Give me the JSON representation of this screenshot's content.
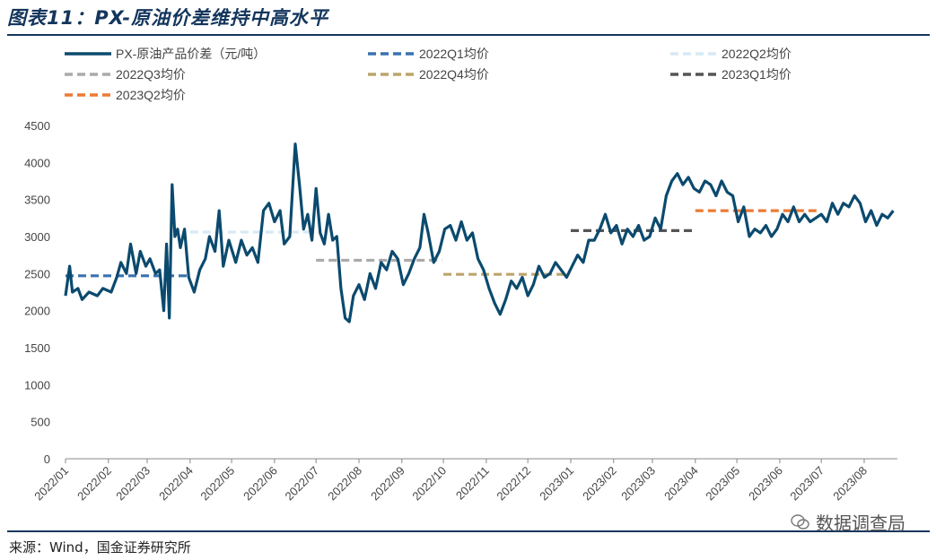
{
  "header": {
    "title": "图表11：PX-原油价差维持中高水平"
  },
  "footer": {
    "source": "来源：Wind，国金证券研究所",
    "watermark": "数据调查局"
  },
  "chart_data": {
    "type": "line",
    "ylim": [
      0,
      4500
    ],
    "yticks": [
      0,
      500,
      1000,
      1500,
      2000,
      2500,
      3000,
      3500,
      4000,
      4500
    ],
    "xticks": [
      "2022/01",
      "2022/02",
      "2022/03",
      "2022/04",
      "2022/05",
      "2022/06",
      "2022/07",
      "2022/08",
      "2022/09",
      "2022/10",
      "2022/11",
      "2022/12",
      "2023/01",
      "2023/02",
      "2023/03",
      "2023/04",
      "2023/05",
      "2023/06",
      "2023/07",
      "2023/08"
    ],
    "series": [
      {
        "name": "PX-原油产品价差（元/吨）",
        "color": "#0b4a6e",
        "style": "solid",
        "points": [
          [
            "2022-01-01",
            2200
          ],
          [
            "2022-01-04",
            2600
          ],
          [
            "2022-01-06",
            2250
          ],
          [
            "2022-01-10",
            2300
          ],
          [
            "2022-01-13",
            2150
          ],
          [
            "2022-01-18",
            2250
          ],
          [
            "2022-01-24",
            2200
          ],
          [
            "2022-01-28",
            2300
          ],
          [
            "2022-02-03",
            2250
          ],
          [
            "2022-02-07",
            2450
          ],
          [
            "2022-02-10",
            2650
          ],
          [
            "2022-02-14",
            2500
          ],
          [
            "2022-02-17",
            2900
          ],
          [
            "2022-02-21",
            2500
          ],
          [
            "2022-02-24",
            2800
          ],
          [
            "2022-02-28",
            2600
          ],
          [
            "2022-03-03",
            2700
          ],
          [
            "2022-03-07",
            2500
          ],
          [
            "2022-03-10",
            2550
          ],
          [
            "2022-03-13",
            2000
          ],
          [
            "2022-03-15",
            2900
          ],
          [
            "2022-03-17",
            1900
          ],
          [
            "2022-03-19",
            3700
          ],
          [
            "2022-03-21",
            3000
          ],
          [
            "2022-03-23",
            3100
          ],
          [
            "2022-03-25",
            2850
          ],
          [
            "2022-03-28",
            3100
          ],
          [
            "2022-03-31",
            2450
          ],
          [
            "2022-04-04",
            2250
          ],
          [
            "2022-04-08",
            2550
          ],
          [
            "2022-04-12",
            2700
          ],
          [
            "2022-04-15",
            3000
          ],
          [
            "2022-04-19",
            2800
          ],
          [
            "2022-04-22",
            3350
          ],
          [
            "2022-04-25",
            2600
          ],
          [
            "2022-04-29",
            2950
          ],
          [
            "2022-05-04",
            2650
          ],
          [
            "2022-05-08",
            2950
          ],
          [
            "2022-05-12",
            2750
          ],
          [
            "2022-05-16",
            2850
          ],
          [
            "2022-05-20",
            2650
          ],
          [
            "2022-05-24",
            3350
          ],
          [
            "2022-05-28",
            3450
          ],
          [
            "2022-06-01",
            3200
          ],
          [
            "2022-06-05",
            3350
          ],
          [
            "2022-06-08",
            2900
          ],
          [
            "2022-06-12",
            3000
          ],
          [
            "2022-06-16",
            4250
          ],
          [
            "2022-06-19",
            3700
          ],
          [
            "2022-06-22",
            3100
          ],
          [
            "2022-06-25",
            3300
          ],
          [
            "2022-06-28",
            2950
          ],
          [
            "2022-07-01",
            3650
          ],
          [
            "2022-07-04",
            3050
          ],
          [
            "2022-07-07",
            2900
          ],
          [
            "2022-07-10",
            3300
          ],
          [
            "2022-07-13",
            2950
          ],
          [
            "2022-07-16",
            3000
          ],
          [
            "2022-07-19",
            2300
          ],
          [
            "2022-07-22",
            1900
          ],
          [
            "2022-07-25",
            1850
          ],
          [
            "2022-07-28",
            2200
          ],
          [
            "2022-08-01",
            2350
          ],
          [
            "2022-08-05",
            2150
          ],
          [
            "2022-08-09",
            2500
          ],
          [
            "2022-08-13",
            2300
          ],
          [
            "2022-08-17",
            2650
          ],
          [
            "2022-08-21",
            2550
          ],
          [
            "2022-08-25",
            2800
          ],
          [
            "2022-08-29",
            2700
          ],
          [
            "2022-09-02",
            2350
          ],
          [
            "2022-09-06",
            2500
          ],
          [
            "2022-09-10",
            2700
          ],
          [
            "2022-09-14",
            2850
          ],
          [
            "2022-09-17",
            3300
          ],
          [
            "2022-09-20",
            3050
          ],
          [
            "2022-09-24",
            2650
          ],
          [
            "2022-09-28",
            2800
          ],
          [
            "2022-10-02",
            3100
          ],
          [
            "2022-10-06",
            3150
          ],
          [
            "2022-10-10",
            2950
          ],
          [
            "2022-10-14",
            3200
          ],
          [
            "2022-10-18",
            2950
          ],
          [
            "2022-10-22",
            3050
          ],
          [
            "2022-10-26",
            2700
          ],
          [
            "2022-10-30",
            2550
          ],
          [
            "2022-11-03",
            2300
          ],
          [
            "2022-11-07",
            2100
          ],
          [
            "2022-11-11",
            1950
          ],
          [
            "2022-11-15",
            2150
          ],
          [
            "2022-11-19",
            2400
          ],
          [
            "2022-11-23",
            2300
          ],
          [
            "2022-11-27",
            2450
          ],
          [
            "2022-12-01",
            2200
          ],
          [
            "2022-12-05",
            2350
          ],
          [
            "2022-12-09",
            2600
          ],
          [
            "2022-12-13",
            2450
          ],
          [
            "2022-12-17",
            2500
          ],
          [
            "2022-12-21",
            2650
          ],
          [
            "2022-12-25",
            2550
          ],
          [
            "2022-12-29",
            2450
          ],
          [
            "2023-01-02",
            2600
          ],
          [
            "2023-01-06",
            2750
          ],
          [
            "2023-01-10",
            2650
          ],
          [
            "2023-01-14",
            2950
          ],
          [
            "2023-01-18",
            2950
          ],
          [
            "2023-01-22",
            3100
          ],
          [
            "2023-01-26",
            3300
          ],
          [
            "2023-01-30",
            3050
          ],
          [
            "2023-02-03",
            3150
          ],
          [
            "2023-02-07",
            2900
          ],
          [
            "2023-02-11",
            3100
          ],
          [
            "2023-02-15",
            3000
          ],
          [
            "2023-02-19",
            3150
          ],
          [
            "2023-02-23",
            2950
          ],
          [
            "2023-02-27",
            3000
          ],
          [
            "2023-03-03",
            3250
          ],
          [
            "2023-03-07",
            3100
          ],
          [
            "2023-03-11",
            3550
          ],
          [
            "2023-03-15",
            3750
          ],
          [
            "2023-03-19",
            3850
          ],
          [
            "2023-03-23",
            3700
          ],
          [
            "2023-03-27",
            3800
          ],
          [
            "2023-03-31",
            3650
          ],
          [
            "2023-04-04",
            3600
          ],
          [
            "2023-04-08",
            3750
          ],
          [
            "2023-04-12",
            3700
          ],
          [
            "2023-04-16",
            3550
          ],
          [
            "2023-04-20",
            3750
          ],
          [
            "2023-04-24",
            3600
          ],
          [
            "2023-04-28",
            3550
          ],
          [
            "2023-05-02",
            3200
          ],
          [
            "2023-05-06",
            3400
          ],
          [
            "2023-05-10",
            3000
          ],
          [
            "2023-05-14",
            3100
          ],
          [
            "2023-05-18",
            3050
          ],
          [
            "2023-05-22",
            3150
          ],
          [
            "2023-05-26",
            3000
          ],
          [
            "2023-05-30",
            3100
          ],
          [
            "2023-06-03",
            3300
          ],
          [
            "2023-06-07",
            3200
          ],
          [
            "2023-06-11",
            3400
          ],
          [
            "2023-06-15",
            3200
          ],
          [
            "2023-06-19",
            3300
          ],
          [
            "2023-06-23",
            3200
          ],
          [
            "2023-06-27",
            3250
          ],
          [
            "2023-07-01",
            3300
          ],
          [
            "2023-07-05",
            3200
          ],
          [
            "2023-07-09",
            3450
          ],
          [
            "2023-07-13",
            3300
          ],
          [
            "2023-07-17",
            3450
          ],
          [
            "2023-07-21",
            3400
          ],
          [
            "2023-07-25",
            3550
          ],
          [
            "2023-07-29",
            3450
          ],
          [
            "2023-08-02",
            3200
          ],
          [
            "2023-08-06",
            3350
          ],
          [
            "2023-08-10",
            3150
          ],
          [
            "2023-08-14",
            3300
          ],
          [
            "2023-08-18",
            3250
          ],
          [
            "2023-08-22",
            3350
          ]
        ]
      },
      {
        "name": "2022Q1均价",
        "color": "#3a72b0",
        "style": "dashed",
        "points": [
          [
            "2022-01-01",
            2470
          ],
          [
            "2022-03-31",
            2470
          ]
        ]
      },
      {
        "name": "2022Q2均价",
        "color": "#d6e9f5",
        "style": "dashed",
        "points": [
          [
            "2022-04-01",
            3060
          ],
          [
            "2022-06-30",
            3060
          ]
        ]
      },
      {
        "name": "2022Q3均价",
        "color": "#aaaaaa",
        "style": "dashed",
        "points": [
          [
            "2022-07-01",
            2680
          ],
          [
            "2022-09-30",
            2680
          ]
        ]
      },
      {
        "name": "2022Q4均价",
        "color": "#bca56a",
        "style": "dashed",
        "points": [
          [
            "2022-10-01",
            2490
          ],
          [
            "2022-12-31",
            2490
          ]
        ]
      },
      {
        "name": "2023Q1均价",
        "color": "#555555",
        "style": "dashed",
        "points": [
          [
            "2023-01-01",
            3080
          ],
          [
            "2023-03-31",
            3080
          ]
        ]
      },
      {
        "name": "2023Q2均价",
        "color": "#ec7a34",
        "style": "dashed",
        "points": [
          [
            "2023-04-01",
            3350
          ],
          [
            "2023-06-30",
            3350
          ]
        ]
      }
    ]
  }
}
